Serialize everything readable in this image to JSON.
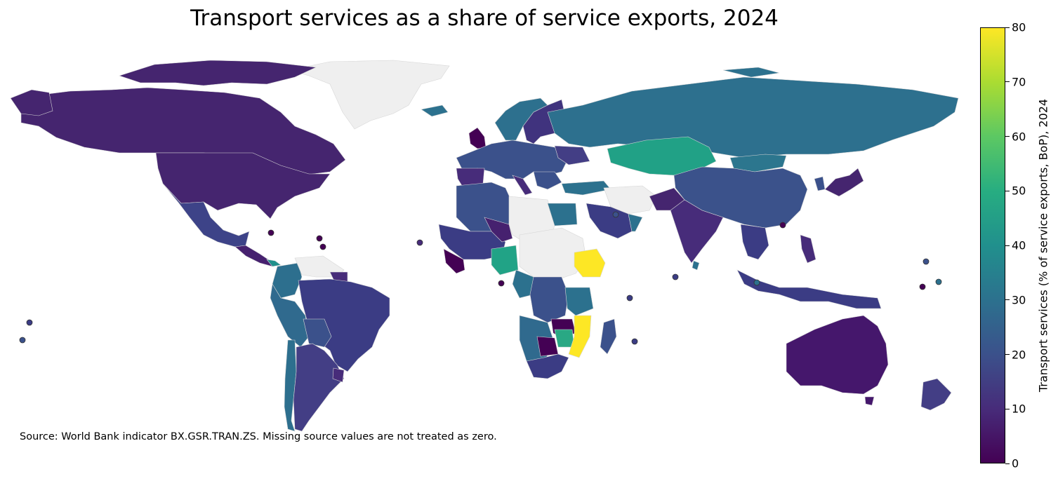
{
  "map": {
    "title": "Transport services as a share of service exports, 2024",
    "source": "Source: World Bank indicator BX.GSR.TRAN.ZS. Missing source values are not treated as zero.",
    "colorbar": {
      "label": "Transport services (% of service exports, BoP), 2024",
      "ticks": [
        "0",
        "10",
        "20",
        "30",
        "40",
        "50",
        "60",
        "70",
        "80"
      ],
      "min": 0,
      "max": 80,
      "colormap": "viridis",
      "colors": [
        "#440154",
        "#472c7a",
        "#3b518b",
        "#2c718e",
        "#21908d",
        "#27ad81",
        "#5cc863",
        "#aadc32",
        "#fde725"
      ]
    },
    "colors": {
      "no_data": "#efefef",
      "border": "#cccccc",
      "ocean": "#ffffff"
    }
  }
}
